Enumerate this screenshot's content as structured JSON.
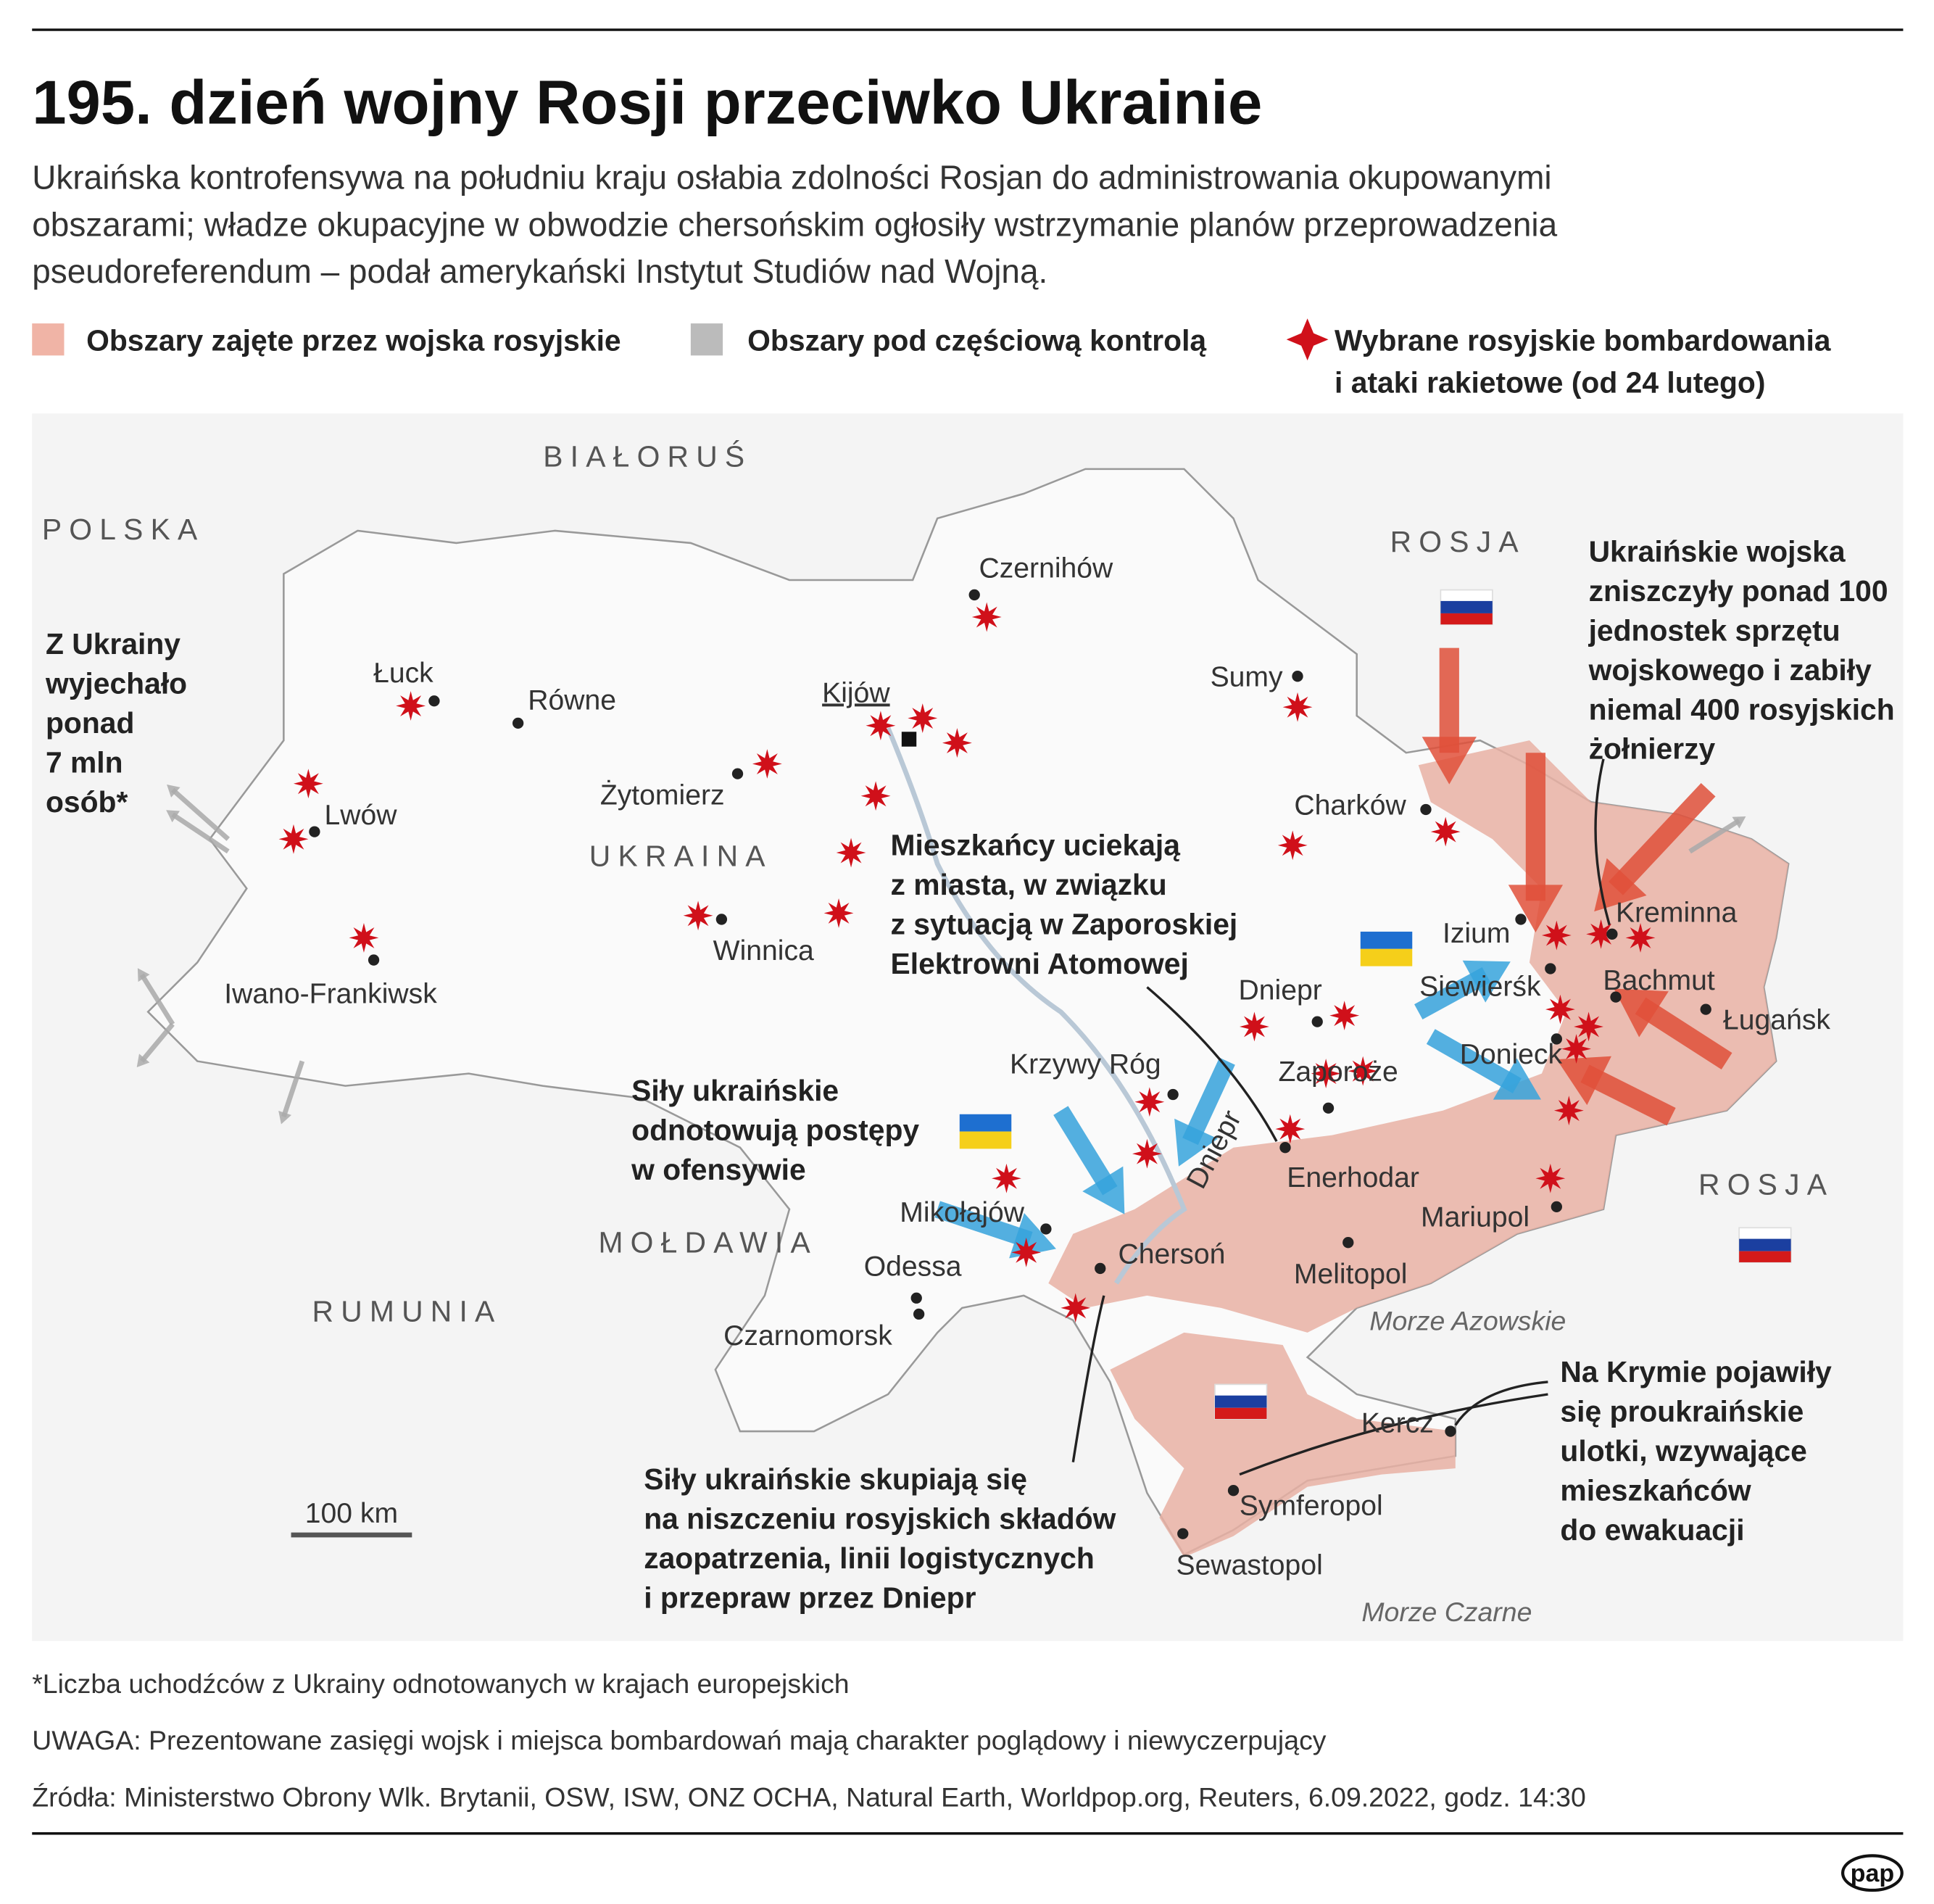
{
  "header": {
    "title": "195. dzień wojny Rosji przeciwko Ukrainie",
    "subtitle": [
      "Ukraińska kontrofensywa na południu kraju osłabia zdolności Rosjan do administrowania okupowanymi",
      "obszarami; władze okupacyjne w obwodzie chersońskim ogłosiły wstrzymanie planów przeprowadzenia",
      "pseudoreferendum – podał amerykański Instytut Studiów nad Wojną."
    ]
  },
  "legend": [
    [
      "Obszary zajęte przez wojska rosyjskie"
    ],
    [
      "Obszary pod częściową kontrolą"
    ],
    [
      "Wybrane rosyjskie bombardowania",
      "i ataki rakietowe (od 24 lutego)"
    ]
  ],
  "map": {
    "countries": [
      "BIAŁORUŚ",
      "POLSKA",
      "ROSJA",
      "UKRAINA",
      "MOŁDAWIA",
      "RUMUNIA",
      "ROSJA"
    ],
    "capital": "Kijów",
    "cities": [
      "Czernihów",
      "Łuck",
      "Równe",
      "Sumy",
      "Żytomierz",
      "Lwów",
      "Charków",
      "Winnica",
      "Izium",
      "Kreminna",
      "Siewierśk",
      "Bachmut",
      "Ługańsk",
      "Iwano-Frankiwsk",
      "Dniepr",
      "Donieck",
      "Krzywy Róg",
      "Zaporoże",
      "Enerhodar",
      "Mariupol",
      "Mikołajów",
      "Odessa",
      "Chersoń",
      "Melitopol",
      "Czarnomorsk",
      "Kercz",
      "Symferopol",
      "Sewastopol"
    ],
    "river": "Dniepr",
    "seas": [
      "Morze Azowskie",
      "Morze Czarne"
    ],
    "scale": "100 km",
    "annotations": [
      [
        "Z Ukrainy",
        "wyjechało",
        "ponad",
        "7 mln",
        "osób*"
      ],
      [
        "Ukraińskie wojska",
        "zniszczyły ponad 100",
        "jednostek sprzętu",
        "wojskowego i zabiły",
        "niemal 400 rosyjskich",
        "żołnierzy"
      ],
      [
        "Mieszkańcy uciekają",
        "z miasta, w związku",
        "z sytuacją w Zaporoskiej",
        "Elektrowni Atomowej"
      ],
      [
        "Siły ukraińskie",
        "odnotowują postępy",
        "w ofensywie"
      ],
      [
        "Na Krymie pojawiły",
        "się proukraińskie",
        "ulotki, wzywające",
        "mieszkańców",
        "do ewakuacji"
      ],
      [
        "Siły ukraińskie skupiają się",
        "na niszczeniu rosyjskich składów",
        "zaopatrzenia, linii logistycznych",
        "i przepraw przez Dniepr"
      ]
    ]
  },
  "footer": {
    "notes": [
      "*Liczba uchodźców z Ukrainy odnotowanych w krajach europejskich",
      "UWAGA: Prezentowane zasięgi wojsk i miejsca bombardowań mają charakter poglądowy i niewyczerpujący",
      "Źródła: Ministerstwo Obrony Wlk. Brytanii, OSW, ISW, ONZ OCHA, Natural Earth, Worldpop.org, Reuters, 6.09.2022, godz. 14:30"
    ]
  },
  "logo": "pap"
}
